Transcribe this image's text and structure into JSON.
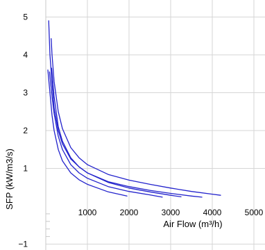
{
  "chart_data": {
    "type": "line",
    "title": "",
    "xlabel": "Air Flow (m³/h)",
    "ylabel": "SFP (kW/m3/s)",
    "xlim": [
      0,
      5000
    ],
    "ylim": [
      -1,
      5.3
    ],
    "x_ticks": [
      1000,
      2000,
      3000,
      4000,
      5000
    ],
    "x_tick_labels": [
      "1000",
      "2000",
      "3000",
      "4000",
      "5000"
    ],
    "y_ticks": [
      -1,
      1,
      2,
      3,
      4,
      5
    ],
    "y_tick_labels": [
      "−1",
      "1",
      "2",
      "3",
      "4",
      "5"
    ],
    "grid": true,
    "legend": "none",
    "line_color": "#2222cc",
    "series": [
      {
        "x": [
          130,
          150,
          200,
          300,
          400,
          600,
          800,
          1000,
          1500,
          2000,
          2500,
          3000,
          3500,
          4000,
          4200
        ],
        "y": [
          4.43,
          4.0,
          3.3,
          2.5,
          2.05,
          1.55,
          1.28,
          1.1,
          0.84,
          0.69,
          0.58,
          0.48,
          0.39,
          0.32,
          0.29
        ]
      },
      {
        "x": [
          70,
          100,
          150,
          200,
          300,
          400,
          600,
          800,
          1000,
          1500,
          2000,
          2500,
          3000,
          3500,
          3750
        ],
        "y": [
          4.9,
          4.0,
          3.25,
          2.6,
          2.0,
          1.65,
          1.25,
          1.04,
          0.88,
          0.65,
          0.52,
          0.42,
          0.34,
          0.27,
          0.24
        ]
      },
      {
        "x": [
          140,
          200,
          300,
          400,
          600,
          800,
          1000,
          1500,
          2000,
          2500,
          3000,
          3250
        ],
        "y": [
          3.65,
          2.9,
          2.1,
          1.72,
          1.28,
          1.04,
          0.88,
          0.63,
          0.48,
          0.38,
          0.29,
          0.25
        ]
      },
      {
        "x": [
          90,
          150,
          200,
          300,
          400,
          600,
          800,
          1000,
          1500,
          2000,
          2500,
          2800
        ],
        "y": [
          3.55,
          2.9,
          2.45,
          1.85,
          1.5,
          1.1,
          0.88,
          0.74,
          0.52,
          0.39,
          0.3,
          0.24
        ]
      },
      {
        "x": [
          50,
          100,
          150,
          200,
          300,
          400,
          600,
          800,
          1000,
          1500,
          1950
        ],
        "y": [
          3.6,
          3.0,
          2.4,
          2.0,
          1.5,
          1.2,
          0.88,
          0.7,
          0.58,
          0.38,
          0.27
        ]
      }
    ]
  }
}
